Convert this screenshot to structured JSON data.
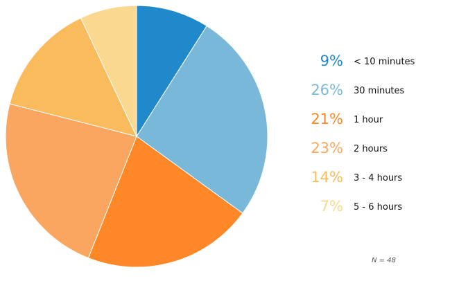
{
  "chart_data": {
    "type": "pie",
    "categories": [
      "< 10 minutes",
      "30 minutes",
      "1 hour",
      "2 hours",
      "3 - 4 hours",
      "5 - 6 hours"
    ],
    "values": [
      9,
      26,
      21,
      23,
      14,
      7
    ],
    "value_labels": [
      "9%",
      "26%",
      "21%",
      "23%",
      "14%",
      "7%"
    ],
    "colors": [
      "#2089cc",
      "#7ab8da",
      "#fe8727",
      "#faa660",
      "#fabb5d",
      "#fbd890"
    ],
    "legend_position": "right",
    "note": "N = 48"
  }
}
